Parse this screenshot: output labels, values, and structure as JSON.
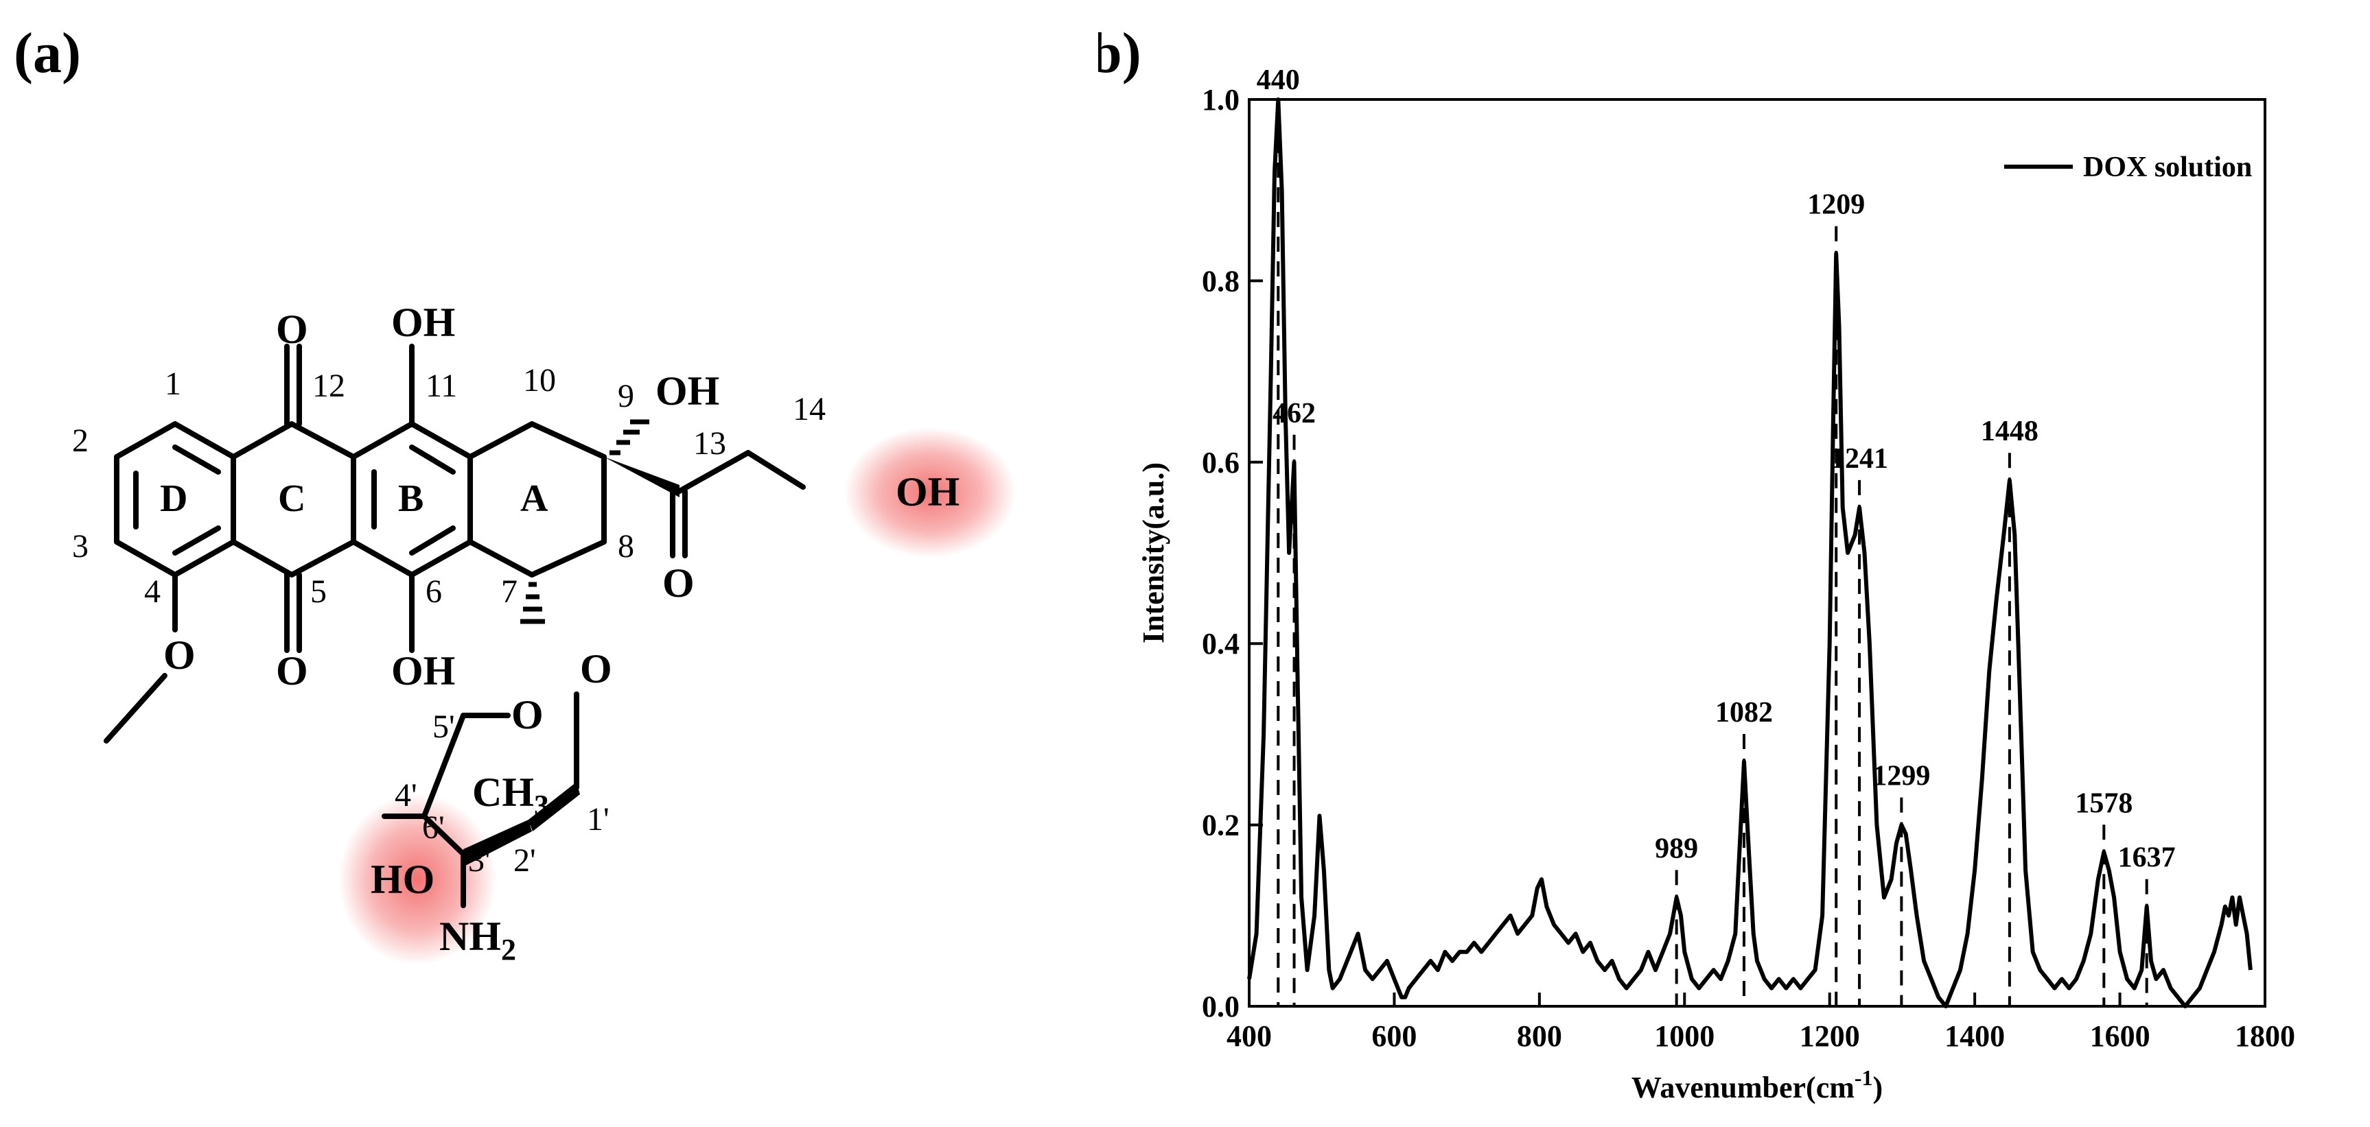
{
  "panels": {
    "a_label": "(a)",
    "b_label": "(b)"
  },
  "molecule": {
    "ring_labels": {
      "A": "A",
      "B": "B",
      "C": "C",
      "D": "D"
    },
    "numbers": {
      "n1": "1",
      "n2": "2",
      "n3": "3",
      "n4": "4",
      "n5": "5",
      "n6": "6",
      "n7": "7",
      "n8": "8",
      "n9": "9",
      "n10": "10",
      "n11": "11",
      "n12": "12",
      "n13": "13",
      "n14": "14",
      "n1p": "1'",
      "n2p": "2'",
      "n3p": "3'",
      "n4p": "4'",
      "n5p": "5'",
      "n6p": "6'"
    },
    "atoms": {
      "o_c12": "O",
      "oh_c11": "OH",
      "o_c5": "O",
      "oh_c6": "OH",
      "o_methoxy": "O",
      "oh_c9": "OH",
      "o_c13": "O",
      "oh_c14": "OH",
      "o_glyco": "O",
      "o_ring": "O",
      "ch3": "CH",
      "ch3_sub": "3",
      "ho_c4p": "HO",
      "nh2": "NH",
      "nh2_sub": "2"
    },
    "highlight_color": "#f25c5c"
  },
  "chart_data": {
    "type": "line",
    "series": [
      {
        "name": "DOX solution",
        "x": [
          400,
          410,
          420,
          430,
          435,
          440,
          445,
          450,
          455,
          462,
          467,
          472,
          480,
          490,
          497,
          503,
          510,
          515,
          525,
          540,
          550,
          560,
          570,
          580,
          590,
          600,
          610,
          615,
          620,
          630,
          640,
          650,
          660,
          670,
          680,
          690,
          700,
          710,
          720,
          730,
          740,
          750,
          760,
          770,
          780,
          790,
          797,
          803,
          810,
          820,
          830,
          840,
          850,
          860,
          870,
          880,
          890,
          900,
          910,
          920,
          930,
          940,
          950,
          960,
          970,
          980,
          989,
          995,
          1000,
          1010,
          1020,
          1030,
          1040,
          1050,
          1060,
          1070,
          1075,
          1082,
          1088,
          1095,
          1100,
          1110,
          1120,
          1130,
          1140,
          1150,
          1160,
          1170,
          1180,
          1190,
          1200,
          1205,
          1209,
          1213,
          1218,
          1225,
          1235,
          1241,
          1248,
          1255,
          1265,
          1275,
          1285,
          1292,
          1299,
          1305,
          1312,
          1320,
          1330,
          1340,
          1350,
          1360,
          1370,
          1380,
          1390,
          1400,
          1410,
          1420,
          1430,
          1440,
          1448,
          1455,
          1462,
          1470,
          1480,
          1490,
          1500,
          1510,
          1520,
          1530,
          1540,
          1550,
          1560,
          1570,
          1578,
          1585,
          1592,
          1600,
          1610,
          1620,
          1630,
          1637,
          1643,
          1650,
          1660,
          1670,
          1680,
          1690,
          1700,
          1710,
          1720,
          1730,
          1740,
          1745,
          1750,
          1755,
          1760,
          1765,
          1770,
          1775,
          1780
        ],
        "y": [
          0.03,
          0.08,
          0.3,
          0.7,
          0.92,
          1.0,
          0.9,
          0.65,
          0.5,
          0.6,
          0.35,
          0.12,
          0.04,
          0.1,
          0.21,
          0.15,
          0.04,
          0.02,
          0.03,
          0.06,
          0.08,
          0.04,
          0.03,
          0.04,
          0.05,
          0.03,
          0.01,
          0.01,
          0.02,
          0.03,
          0.04,
          0.05,
          0.04,
          0.06,
          0.05,
          0.06,
          0.06,
          0.07,
          0.06,
          0.07,
          0.08,
          0.09,
          0.1,
          0.08,
          0.09,
          0.1,
          0.13,
          0.14,
          0.11,
          0.09,
          0.08,
          0.07,
          0.08,
          0.06,
          0.07,
          0.05,
          0.04,
          0.05,
          0.03,
          0.02,
          0.03,
          0.04,
          0.06,
          0.04,
          0.06,
          0.08,
          0.12,
          0.1,
          0.06,
          0.03,
          0.02,
          0.03,
          0.04,
          0.03,
          0.05,
          0.08,
          0.16,
          0.27,
          0.18,
          0.08,
          0.05,
          0.03,
          0.02,
          0.03,
          0.02,
          0.03,
          0.02,
          0.03,
          0.04,
          0.1,
          0.4,
          0.65,
          0.83,
          0.75,
          0.55,
          0.5,
          0.52,
          0.55,
          0.5,
          0.4,
          0.2,
          0.12,
          0.14,
          0.18,
          0.2,
          0.19,
          0.15,
          0.1,
          0.05,
          0.03,
          0.01,
          0.0,
          0.02,
          0.04,
          0.08,
          0.15,
          0.25,
          0.37,
          0.45,
          0.52,
          0.58,
          0.52,
          0.35,
          0.15,
          0.06,
          0.04,
          0.03,
          0.02,
          0.03,
          0.02,
          0.03,
          0.05,
          0.08,
          0.14,
          0.17,
          0.15,
          0.12,
          0.06,
          0.03,
          0.02,
          0.04,
          0.11,
          0.05,
          0.03,
          0.04,
          0.02,
          0.01,
          0.0,
          0.01,
          0.02,
          0.04,
          0.06,
          0.09,
          0.11,
          0.1,
          0.12,
          0.09,
          0.12,
          0.1,
          0.08,
          0.04
        ]
      }
    ],
    "peaks": [
      {
        "x": 440,
        "label": "440",
        "dashed": true
      },
      {
        "x": 462,
        "label": "462",
        "dashed": true
      },
      {
        "x": 989,
        "label": "989",
        "dashed": true
      },
      {
        "x": 1082,
        "label": "1082",
        "dashed": true
      },
      {
        "x": 1209,
        "label": "1209",
        "dashed": true
      },
      {
        "x": 1241,
        "label": "1241",
        "dashed": true
      },
      {
        "x": 1299,
        "label": "1299",
        "dashed": true
      },
      {
        "x": 1448,
        "label": "1448",
        "dashed": true
      },
      {
        "x": 1578,
        "label": "1578",
        "dashed": true
      },
      {
        "x": 1637,
        "label": "1637",
        "dashed": true
      }
    ],
    "xlabel": "Wavenumber(cm",
    "xlabel_sup": "-1",
    "xlabel_end": ")",
    "ylabel": "Intensity(a.u.)",
    "xlim": [
      400,
      1800
    ],
    "ylim": [
      0,
      1.0
    ],
    "xticks": [
      "400",
      "600",
      "800",
      "1000",
      "1200",
      "1400",
      "1600",
      "1800"
    ],
    "yticks": [
      "0.0",
      "0.2",
      "0.4",
      "0.6",
      "0.8",
      "1.0"
    ],
    "grid": false,
    "legend": {
      "position": "top-right",
      "label": "DOX solution"
    },
    "line_color": "#000000"
  }
}
